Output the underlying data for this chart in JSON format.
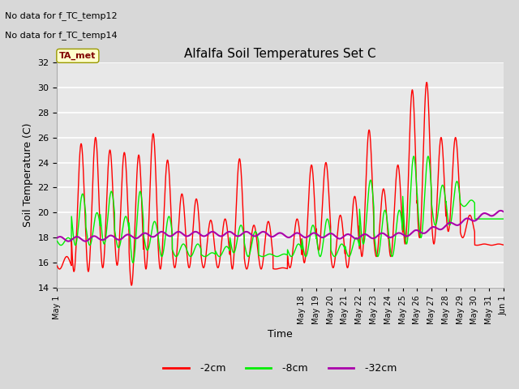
{
  "title": "Alfalfa Soil Temperatures Set C",
  "xlabel": "Time",
  "ylabel": "Soil Temperature (C)",
  "ylim": [
    14,
    32
  ],
  "annotation_lines": [
    "No data for f_TC_temp12",
    "No data for f_TC_temp14"
  ],
  "legend_box_label": "TA_met",
  "legend_box_color": "#ffffcc",
  "legend_box_text_color": "#800000",
  "fig_bg_color": "#d8d8d8",
  "plot_bg_color": "#e8e8e8",
  "grid_color": "white",
  "color_red": "#ff0000",
  "color_green": "#00ee00",
  "color_purple": "#aa00aa",
  "xtick_labels": [
    "May 1",
    "May 18",
    "May 19",
    "May 20",
    "May 21",
    "May 22",
    "May 23",
    "May 24",
    "May 25",
    "May 26",
    "May 27",
    "May 28",
    "May 29",
    "May 30",
    "May 31",
    "Jun 1"
  ],
  "xtick_positions": [
    0,
    17,
    18,
    19,
    20,
    21,
    22,
    23,
    24,
    25,
    26,
    27,
    28,
    29,
    30,
    31
  ],
  "red_max": [
    16.5,
    25.5,
    26.0,
    25.0,
    24.8,
    24.6,
    26.3,
    24.2,
    21.5,
    21.1,
    19.4,
    19.5,
    24.3,
    19.0,
    19.3,
    15.6,
    19.5,
    23.8,
    24.0,
    19.8,
    21.3,
    26.6,
    21.9,
    23.8,
    29.8,
    30.4,
    26.0,
    26.0,
    19.8,
    17.5,
    17.5
  ],
  "red_min": [
    15.5,
    15.3,
    15.3,
    15.6,
    15.8,
    14.2,
    15.5,
    15.5,
    15.6,
    15.6,
    15.6,
    15.6,
    15.5,
    15.5,
    15.5,
    15.5,
    15.6,
    16.0,
    17.0,
    15.6,
    15.6,
    16.5,
    16.5,
    16.5,
    17.5,
    18.0,
    17.5,
    18.5,
    18.0,
    17.4,
    17.4
  ],
  "green_max": [
    18.0,
    21.5,
    20.0,
    21.7,
    19.7,
    21.7,
    19.3,
    19.7,
    17.5,
    17.5,
    16.8,
    17.3,
    19.0,
    18.5,
    16.7,
    16.7,
    17.5,
    19.0,
    19.5,
    17.5,
    18.0,
    22.6,
    20.2,
    20.2,
    24.5,
    24.5,
    22.2,
    22.5,
    21.0,
    19.5,
    19.5
  ],
  "green_min": [
    17.4,
    17.4,
    17.4,
    17.5,
    17.2,
    16.0,
    17.0,
    16.5,
    16.5,
    16.5,
    16.5,
    16.5,
    16.8,
    16.5,
    16.5,
    16.5,
    16.5,
    16.5,
    16.5,
    16.5,
    16.5,
    17.5,
    16.5,
    16.5,
    17.5,
    18.0,
    19.0,
    19.0,
    20.5,
    19.5,
    19.5
  ],
  "purple_vals": [
    17.9,
    17.9,
    17.9,
    18.0,
    18.0,
    18.1,
    18.2,
    18.3,
    18.3,
    18.3,
    18.3,
    18.3,
    18.3,
    18.3,
    18.3,
    18.2,
    18.2,
    18.2,
    18.2,
    18.1,
    18.1,
    18.1,
    18.2,
    18.2,
    18.4,
    18.6,
    18.9,
    19.2,
    19.5,
    19.9,
    20.0
  ],
  "n_days": 31
}
